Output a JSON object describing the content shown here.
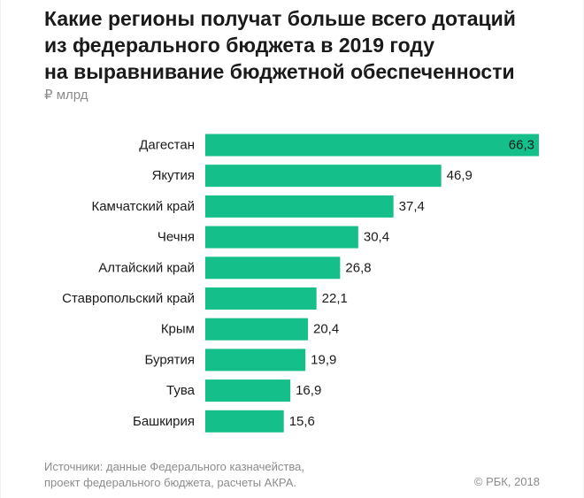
{
  "header": {
    "title_lines": [
      "Какие регионы получат больше всего дотаций",
      "из федерального бюджета в 2019 году",
      "на выравнивание бюджетной обеспеченности"
    ],
    "unit": "₽ млрд"
  },
  "footer": {
    "source_lines": [
      "Источники: данные Федерального казначейства,",
      "проект федерального бюджета, расчеты АКРА."
    ],
    "copyright": "© РБК, 2018"
  },
  "colors": {
    "bar": "#14bf8a",
    "label": "#1a1a1a"
  },
  "chart_data": {
    "type": "bar",
    "orientation": "horizontal",
    "title": "Какие регионы получат больше всего дотаций из федерального бюджета в 2019 году на выравнивание бюджетной обеспеченности",
    "ylabel": "₽ млрд",
    "categories": [
      "Дагестан",
      "Якутия",
      "Камчатский край",
      "Чечня",
      "Алтайский край",
      "Ставропольский край",
      "Крым",
      "Бурятия",
      "Тува",
      "Башкирия"
    ],
    "values": [
      66.3,
      46.9,
      37.4,
      30.4,
      26.8,
      22.1,
      20.4,
      19.9,
      16.9,
      15.6
    ],
    "value_labels": [
      "66,3",
      "46,9",
      "37,4",
      "30,4",
      "26,8",
      "22,1",
      "20,4",
      "19,9",
      "16,9",
      "15,6"
    ],
    "xlim": [
      0,
      66.3
    ],
    "grid": false,
    "legend": "none"
  }
}
